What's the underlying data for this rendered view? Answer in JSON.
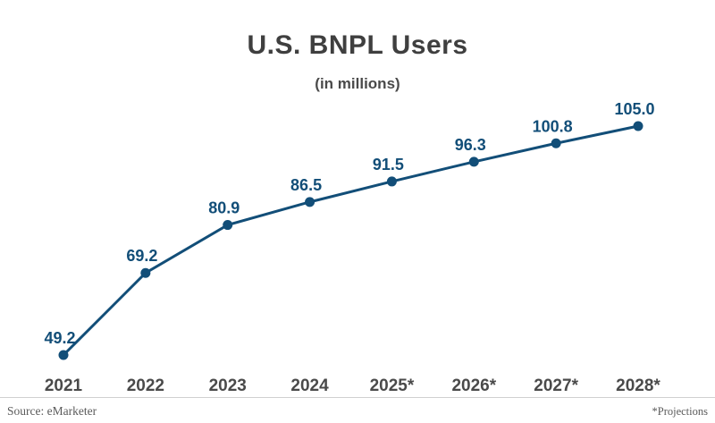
{
  "chart": {
    "title": "U.S. BNPL Users",
    "subtitle": "(in millions)"
  },
  "chart_data": {
    "type": "line",
    "categories": [
      "2021",
      "2022",
      "2023",
      "2024",
      "2025*",
      "2026*",
      "2027*",
      "2028*"
    ],
    "values": [
      49.2,
      69.2,
      80.9,
      86.5,
      91.5,
      96.3,
      100.8,
      105.0
    ],
    "title": "U.S. BNPL Users",
    "subtitle": "(in millions)",
    "xlabel": "",
    "ylabel": "",
    "ylim": [
      40,
      112
    ],
    "grid": false,
    "legend": "none",
    "line_color": "#124E78",
    "label_color": "#124E78",
    "value_decimals": 1
  },
  "footer": {
    "source": "Source: eMarketer",
    "projections_note": "*Projections"
  }
}
